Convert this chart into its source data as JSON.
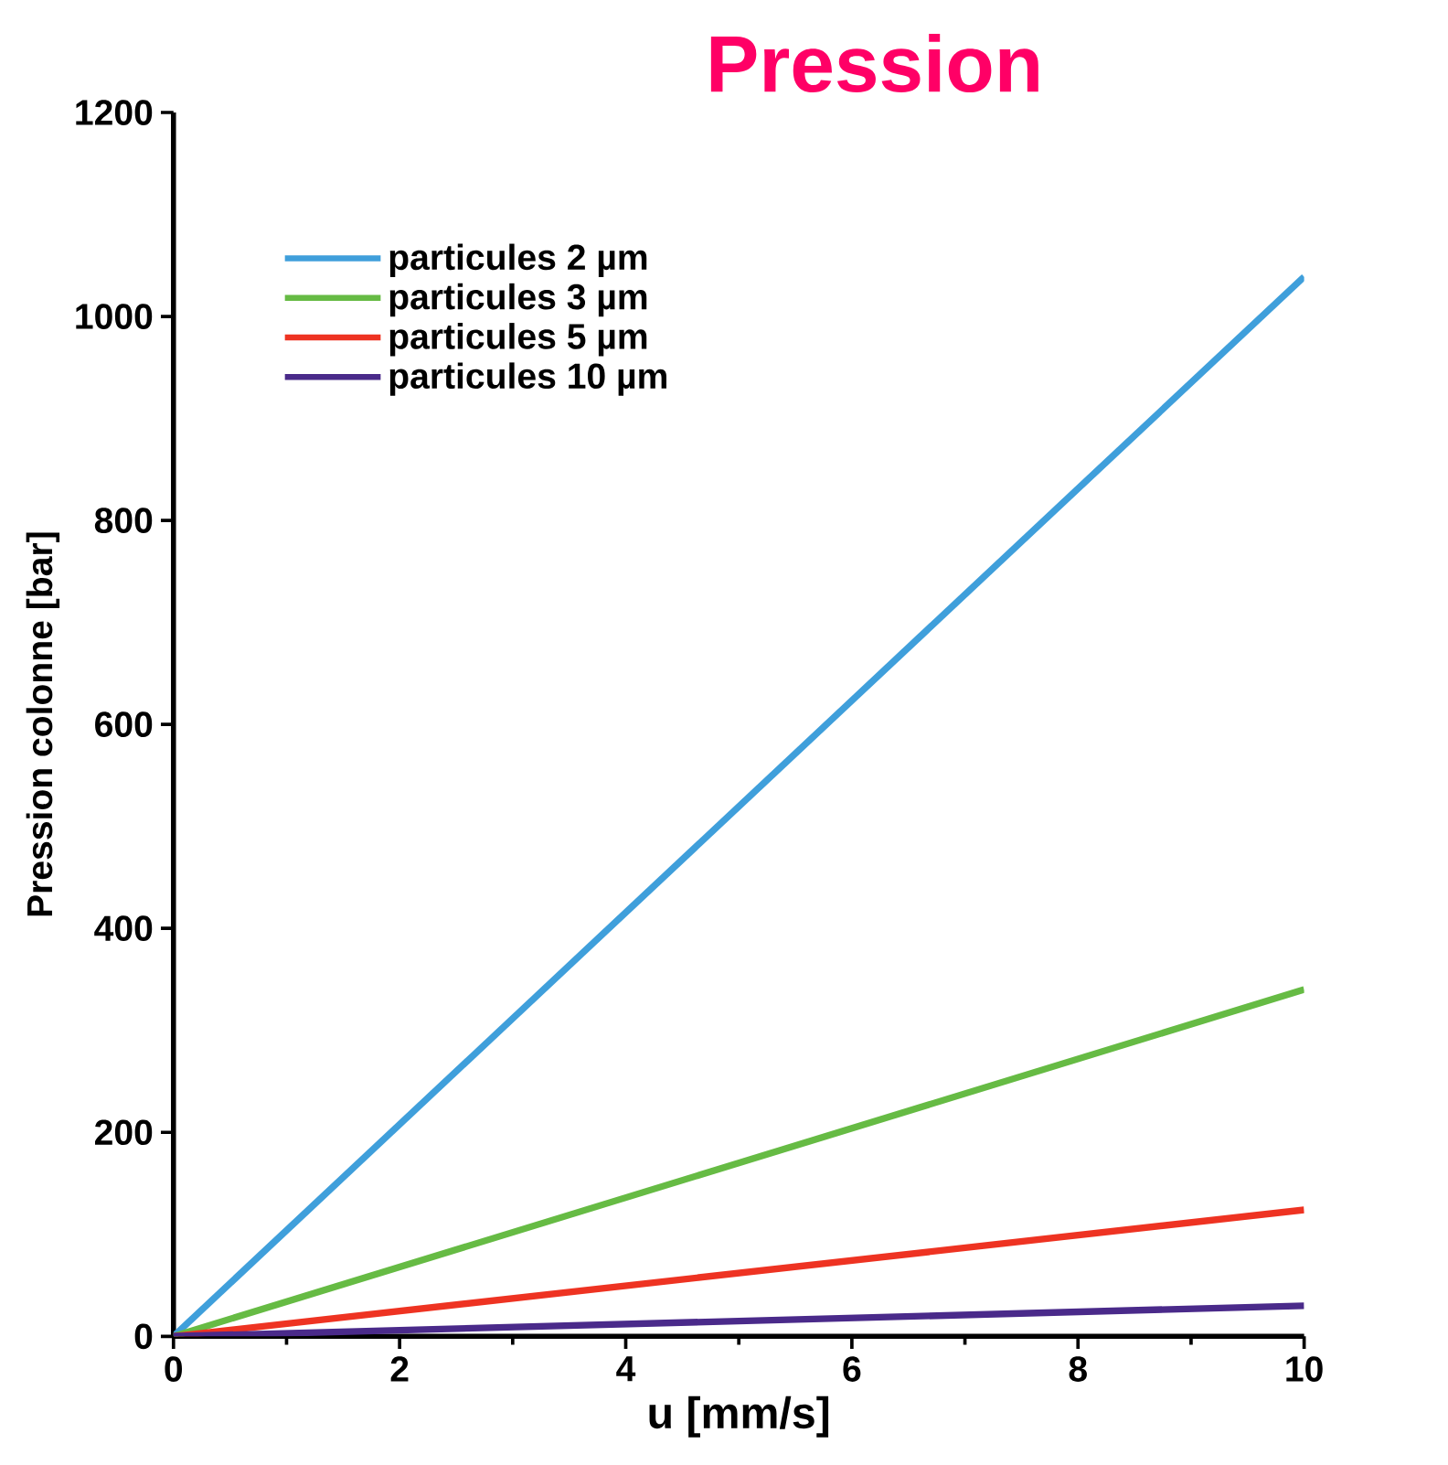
{
  "chart_data": {
    "type": "line",
    "title": "Pression",
    "xlabel": "u [mm/s]",
    "ylabel": "Pression  colonne [bar]",
    "x": [
      0,
      10
    ],
    "series": [
      {
        "name": "particules 2 µm",
        "color": "#3f9fdb",
        "values": [
          0,
          1039
        ]
      },
      {
        "name": "particules 3 µm",
        "color": "#66bb44",
        "values": [
          0,
          340
        ]
      },
      {
        "name": "particules 5 µm",
        "color": "#ee3322",
        "values": [
          0,
          124
        ]
      },
      {
        "name": "particules 10 µm",
        "color": "#4a2a8a",
        "values": [
          0,
          30
        ]
      }
    ],
    "xlim": [
      0,
      10
    ],
    "ylim": [
      0,
      1200
    ],
    "xticks": [
      0,
      2,
      4,
      6,
      8,
      10
    ],
    "yticks": [
      0,
      200,
      400,
      600,
      800,
      1000,
      1200
    ],
    "grid": false,
    "legend": "top left",
    "marker": "none",
    "line_style": "solid"
  }
}
